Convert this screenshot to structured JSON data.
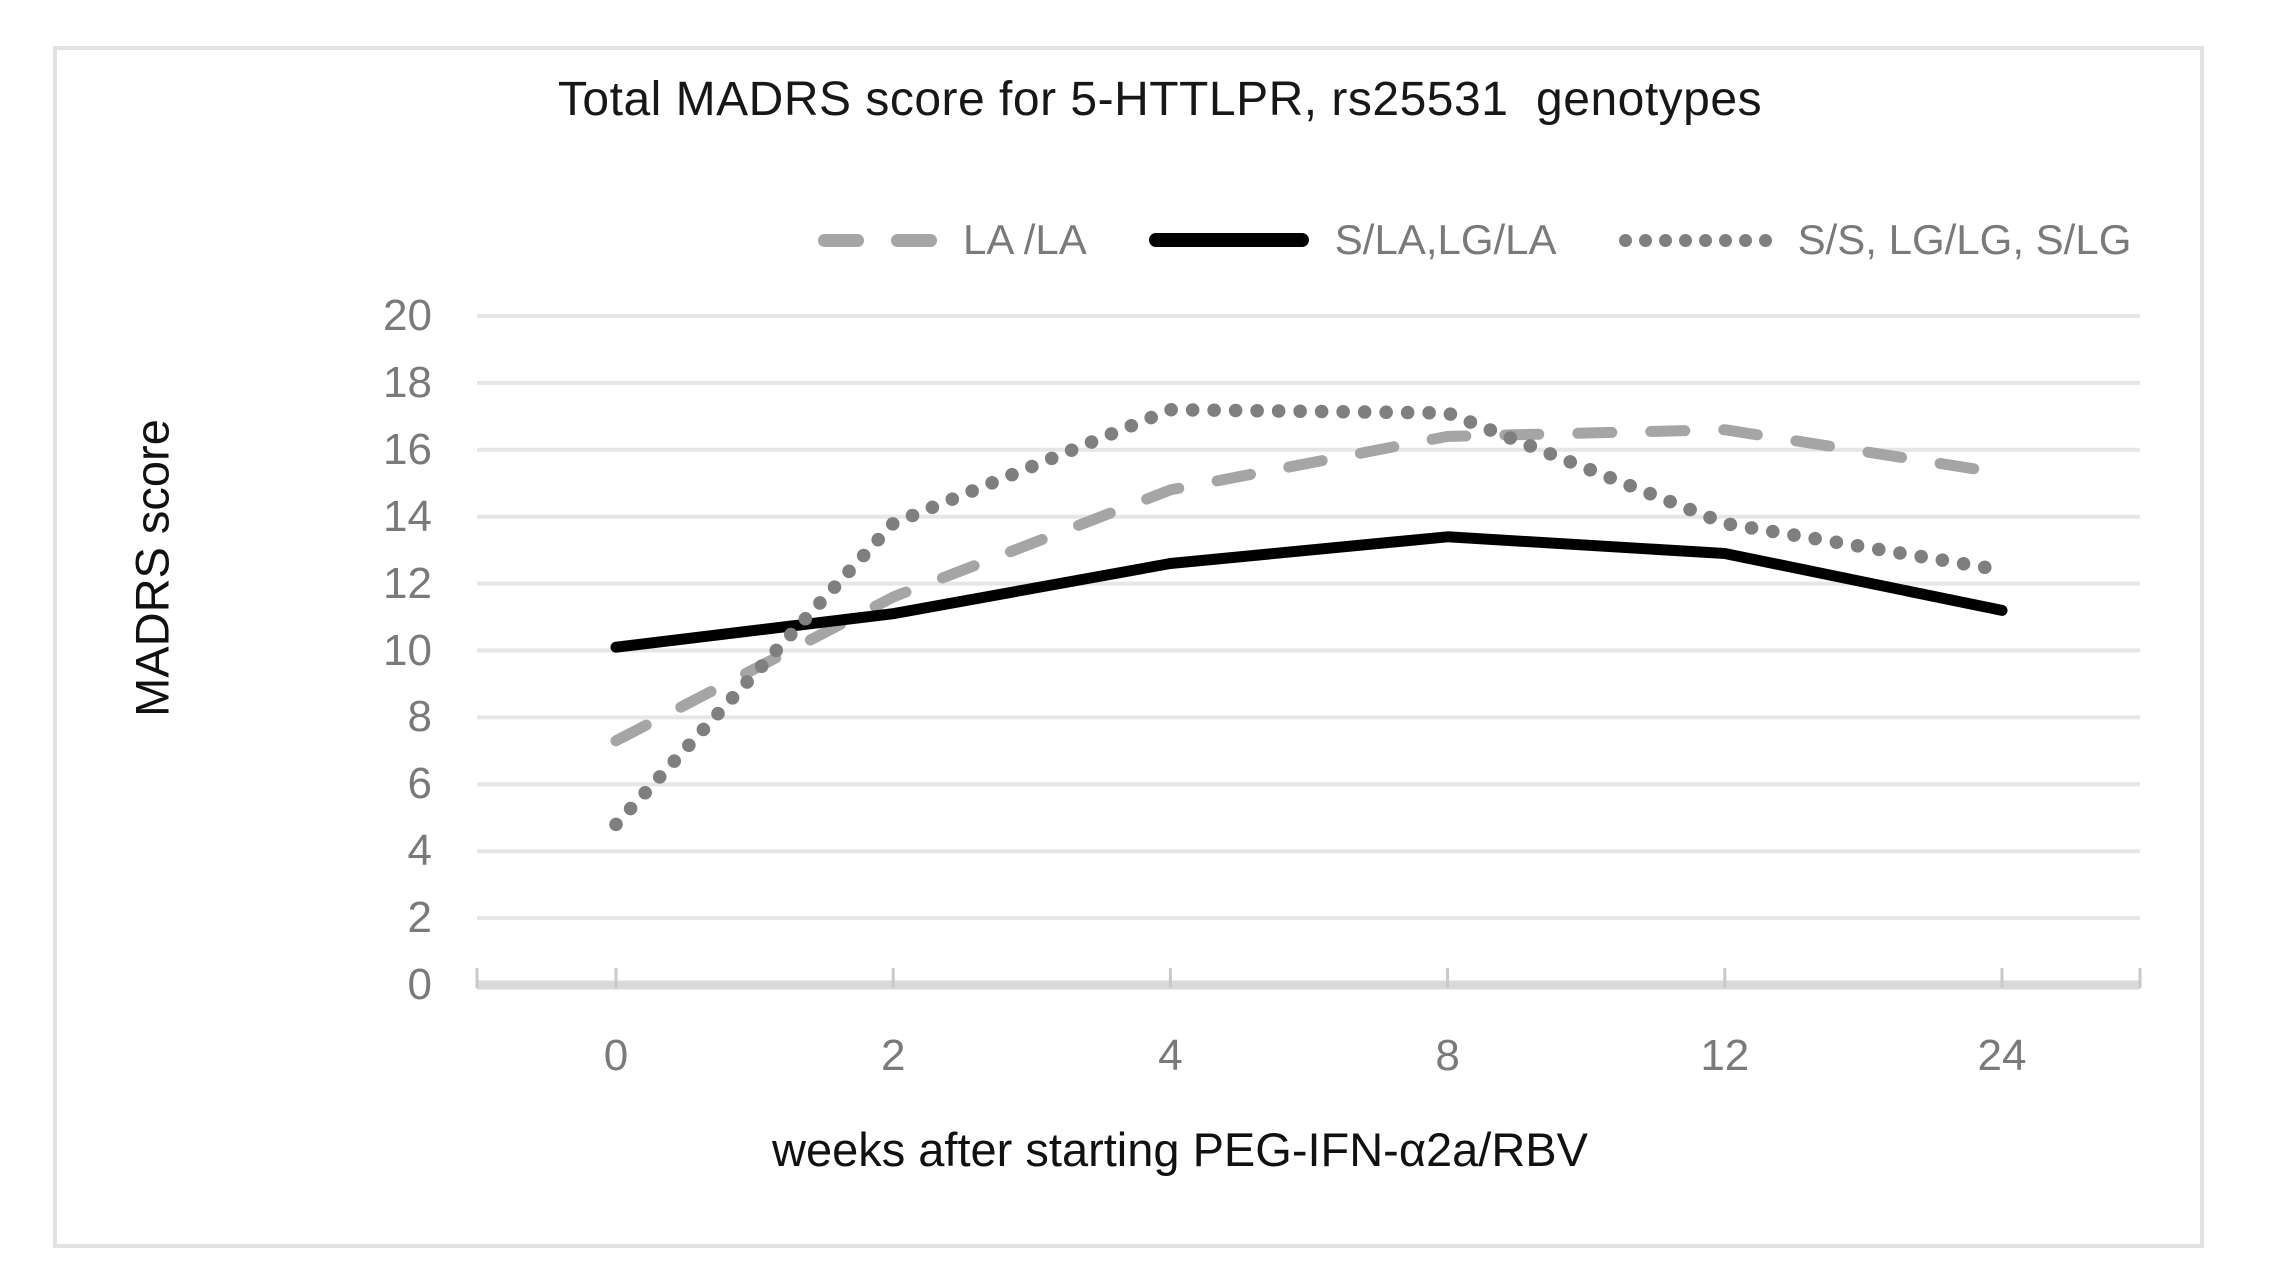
{
  "figure": {
    "type": "excel-style line chart"
  },
  "chart_data": {
    "type": "line",
    "title": "Total MADRS score for 5-HTTLPR, rs25531  genotypes",
    "xlabel": "weeks after starting PEG-IFN-α2a/RBV",
    "ylabel": "MADRS score",
    "categories": [
      "0",
      "2",
      "4",
      "8",
      "12",
      "24"
    ],
    "y_ticks": [
      0,
      2,
      4,
      6,
      8,
      10,
      12,
      14,
      16,
      18,
      20
    ],
    "ylim": [
      0,
      20
    ],
    "grid": true,
    "legend_position": "top-center",
    "series": [
      {
        "name": "LA /LA",
        "style": "dashed",
        "color": "#a5a5a5",
        "values": [
          7.3,
          11.6,
          14.8,
          16.4,
          16.6,
          15.3
        ]
      },
      {
        "name": "S/LA,LG/LA",
        "style": "solid",
        "color": "#000000",
        "values": [
          10.1,
          11.1,
          12.6,
          13.4,
          12.9,
          11.2
        ]
      },
      {
        "name": "S/S, LG/LG, S/LG",
        "style": "dotted",
        "color": "#7f7f7f",
        "values": [
          4.8,
          13.8,
          17.2,
          17.1,
          13.8,
          12.4
        ]
      }
    ]
  },
  "colors": {
    "background": "#ffffff",
    "border": "#e2e2e2",
    "gridline": "#e6e6e6",
    "axis_line": "#d9d9d9",
    "tick_mark": "#c9c9c9",
    "tick_label": "#7a7a7a",
    "title_text": "#171717",
    "axis_title_text": "#111111",
    "legend_label": "#7a7a7a"
  }
}
